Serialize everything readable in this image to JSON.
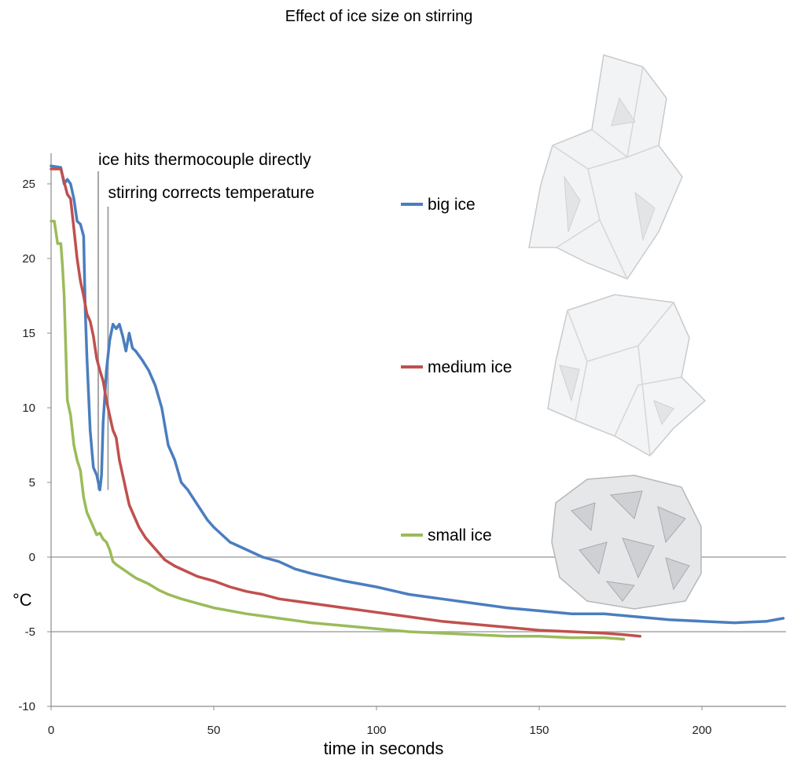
{
  "chart_data": {
    "type": "line",
    "title": "Effect of ice size on stirring",
    "xlabel": "time in seconds",
    "ylabel": "°C",
    "xlim": [
      0,
      225
    ],
    "ylim": [
      -10,
      27
    ],
    "x_ticks": [
      "0",
      "50",
      "100",
      "150",
      "200"
    ],
    "y_ticks": [
      "-10",
      "-5",
      "0",
      "5",
      "10",
      "15",
      "20",
      "25"
    ],
    "reference_lines_y": [
      0,
      -5
    ],
    "legend_placement": "right",
    "annotations": [
      {
        "text": "ice hits thermocouple directly",
        "x": 14.5
      },
      {
        "text": "stirring corrects temperature",
        "x": 17.5
      }
    ],
    "colors": {
      "big ice": "#4a7ebf",
      "medium ice": "#c0504d",
      "small ice": "#9bbb59",
      "reference": "#a6a6a6"
    },
    "series": [
      {
        "name": "big ice",
        "x": [
          0,
          3,
          4,
          5,
          6,
          7,
          8,
          9,
          10,
          10.5,
          11,
          12,
          13,
          14,
          15,
          15.5,
          16,
          17,
          18,
          19,
          20,
          21,
          22,
          23,
          24,
          25,
          26,
          28,
          30,
          32,
          34,
          36,
          38,
          40,
          42,
          45,
          48,
          50,
          55,
          60,
          65,
          70,
          75,
          80,
          90,
          100,
          110,
          120,
          130,
          140,
          150,
          160,
          170,
          180,
          190,
          200,
          210,
          220,
          225
        ],
        "y": [
          26.2,
          26.1,
          25.0,
          25.3,
          25.0,
          24.0,
          22.5,
          22.3,
          21.5,
          16.5,
          13.5,
          8.5,
          6.0,
          5.5,
          4.5,
          5.5,
          9.0,
          12.5,
          14.5,
          15.6,
          15.3,
          15.6,
          14.8,
          13.8,
          15.0,
          14.0,
          13.8,
          13.2,
          12.5,
          11.5,
          10.0,
          7.5,
          6.5,
          5.0,
          4.5,
          3.5,
          2.5,
          2.0,
          1.0,
          0.5,
          0.0,
          -0.3,
          -0.8,
          -1.1,
          -1.6,
          -2.0,
          -2.5,
          -2.8,
          -3.1,
          -3.4,
          -3.6,
          -3.8,
          -3.8,
          -4.0,
          -4.2,
          -4.3,
          -4.4,
          -4.3,
          -4.1
        ]
      },
      {
        "name": "medium ice",
        "x": [
          0,
          3,
          5,
          6,
          7,
          8,
          9,
          10,
          11,
          12,
          13,
          14,
          15,
          16,
          17,
          18,
          19,
          20,
          21,
          22,
          23,
          24,
          25,
          27,
          29,
          31,
          33,
          35,
          38,
          41,
          45,
          50,
          55,
          60,
          65,
          70,
          80,
          90,
          100,
          110,
          120,
          130,
          140,
          150,
          160,
          170,
          176,
          181
        ],
        "y": [
          26.0,
          26.0,
          24.3,
          24.0,
          22.0,
          20.0,
          18.5,
          17.5,
          16.3,
          15.8,
          14.8,
          13.3,
          12.5,
          11.8,
          10.5,
          9.5,
          8.5,
          8.0,
          6.5,
          5.5,
          4.5,
          3.5,
          3.0,
          2.0,
          1.3,
          0.8,
          0.3,
          -0.2,
          -0.6,
          -0.9,
          -1.3,
          -1.6,
          -2.0,
          -2.3,
          -2.5,
          -2.8,
          -3.1,
          -3.4,
          -3.7,
          -4.0,
          -4.3,
          -4.5,
          -4.7,
          -4.9,
          -5.0,
          -5.1,
          -5.2,
          -5.3
        ]
      },
      {
        "name": "small ice",
        "x": [
          0,
          1,
          2,
          3,
          3.5,
          4,
          5,
          6,
          7,
          8,
          9,
          10,
          11,
          12,
          13,
          14,
          15,
          16,
          17,
          18,
          19,
          20,
          22,
          24,
          26,
          28,
          30,
          33,
          36,
          40,
          45,
          50,
          60,
          70,
          80,
          90,
          100,
          110,
          120,
          130,
          140,
          150,
          160,
          170,
          176
        ],
        "y": [
          22.5,
          22.5,
          21.0,
          21.0,
          19.5,
          17.5,
          10.5,
          9.5,
          7.5,
          6.5,
          5.8,
          4.0,
          3.0,
          2.5,
          2.0,
          1.5,
          1.6,
          1.2,
          1.0,
          0.5,
          -0.3,
          -0.5,
          -0.8,
          -1.1,
          -1.4,
          -1.6,
          -1.8,
          -2.2,
          -2.5,
          -2.8,
          -3.1,
          -3.4,
          -3.8,
          -4.1,
          -4.4,
          -4.6,
          -4.8,
          -5.0,
          -5.1,
          -5.2,
          -5.3,
          -5.3,
          -5.4,
          -5.4,
          -5.5
        ]
      }
    ]
  },
  "legend_images": [
    {
      "name": "big ice",
      "icon": "large-ice-chunks-picture"
    },
    {
      "name": "medium ice",
      "icon": "medium-ice-cubes-picture"
    },
    {
      "name": "small ice",
      "icon": "crushed-ice-picture"
    }
  ]
}
